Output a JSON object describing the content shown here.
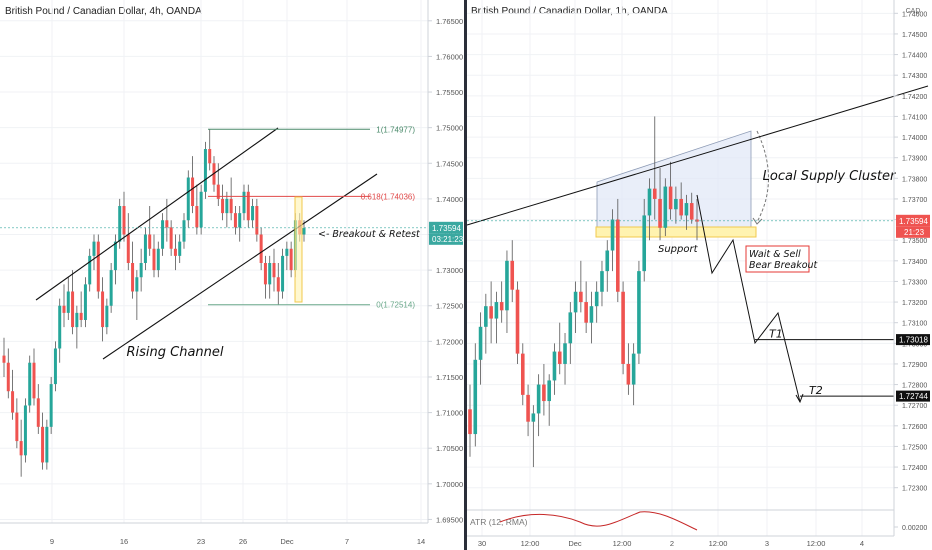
{
  "colors": {
    "up": "#26a69a",
    "down": "#ef5350",
    "wick": "#555555",
    "fib_top": "#4a8a6a",
    "fib_mid": "#e04848",
    "fib_bottom": "#6aa88a",
    "current_price": "#3aa8a0",
    "target_box": "#111111",
    "support_fill": "#fff3b0",
    "support_stroke": "#f2c94c",
    "supply_fill": "#dfe7f7",
    "atr": "#c62828",
    "divider": "#2a2e39"
  },
  "left": {
    "title": "British Pound / Canadian Dollar, 4h, OANDA",
    "y_ticks": [
      "1.76500",
      "1.76000",
      "1.75500",
      "1.75000",
      "1.74500",
      "1.74000",
      "1.73500",
      "1.73000",
      "1.72500",
      "1.72000",
      "1.71500",
      "1.71000",
      "1.70500",
      "1.70000",
      "1.69500"
    ],
    "x_ticks": [
      "9",
      "16",
      "23",
      "26",
      "Dec",
      "7",
      "14"
    ],
    "price_label": "1.73594",
    "countdown": "03:21:23",
    "fib": [
      {
        "label": "1(1.74977)",
        "value": 1.74977
      },
      {
        "label": "0.618(1.74036)",
        "value": 1.74036
      },
      {
        "label": "0(1.72514)",
        "value": 1.72514
      }
    ],
    "annotations": {
      "channel": "Rising Channel",
      "retest": "<- Breakout & Retest"
    }
  },
  "right": {
    "title": "British Pound / Canadian Dollar, 1h, OANDA",
    "currency": "CAD",
    "y_ticks": [
      "1.74600",
      "1.74500",
      "1.74400",
      "1.74300",
      "1.74200",
      "1.74100",
      "1.74000",
      "1.73900",
      "1.73800",
      "1.73700",
      "1.73600",
      "1.73500",
      "1.73400",
      "1.73300",
      "1.73200",
      "1.73100",
      "1.73000",
      "1.72900",
      "1.72800",
      "1.72700",
      "1.72600",
      "1.72500",
      "1.72400",
      "1.72300",
      "0.00200"
    ],
    "x_ticks": [
      "30",
      "12:00",
      "Dec",
      "12:00",
      "2",
      "12:00",
      "3",
      "12:00",
      "4"
    ],
    "price_label": "1.73594",
    "countdown": "21:23",
    "targets": [
      {
        "label": "T1",
        "price": "1.73018",
        "value": 1.73018
      },
      {
        "label": "T2",
        "price": "1.72744",
        "value": 1.72744
      }
    ],
    "annotations": {
      "supply": "Local Supply Cluster",
      "support": "Support",
      "wait_line1": "Wait & Sell",
      "wait_line2": "Bear Breakout"
    },
    "indicator": "ATR (12, RMA)"
  },
  "chart_data": [
    {
      "type": "candlestick",
      "title": "British Pound / Canadian Dollar, 4h, OANDA",
      "ylim": [
        1.6945,
        1.7675
      ],
      "x_ticks": [
        "9",
        "16",
        "23",
        "26",
        "Dec",
        "7",
        "14"
      ],
      "series": [
        {
          "ohlc": [
            [
              1.718,
              1.7205,
              1.715,
              1.717
            ],
            [
              1.717,
              1.719,
              1.712,
              1.713
            ],
            [
              1.713,
              1.716,
              1.709,
              1.71
            ],
            [
              1.71,
              1.712,
              1.705,
              1.706
            ],
            [
              1.706,
              1.709,
              1.701,
              1.704
            ],
            [
              1.704,
              1.712,
              1.703,
              1.711
            ],
            [
              1.711,
              1.718,
              1.71,
              1.717
            ],
            [
              1.717,
              1.719,
              1.711,
              1.712
            ],
            [
              1.712,
              1.714,
              1.707,
              1.708
            ],
            [
              1.708,
              1.71,
              1.702,
              1.703
            ],
            [
              1.703,
              1.709,
              1.702,
              1.708
            ],
            [
              1.708,
              1.715,
              1.707,
              1.714
            ],
            [
              1.714,
              1.72,
              1.713,
              1.719
            ],
            [
              1.719,
              1.726,
              1.717,
              1.725
            ],
            [
              1.725,
              1.728,
              1.722,
              1.724
            ],
            [
              1.724,
              1.729,
              1.723,
              1.727
            ],
            [
              1.727,
              1.73,
              1.721,
              1.722
            ],
            [
              1.722,
              1.725,
              1.719,
              1.724
            ],
            [
              1.724,
              1.727,
              1.722,
              1.723
            ],
            [
              1.723,
              1.729,
              1.722,
              1.728
            ],
            [
              1.728,
              1.733,
              1.727,
              1.732
            ],
            [
              1.732,
              1.735,
              1.73,
              1.734
            ],
            [
              1.734,
              1.735,
              1.726,
              1.727
            ],
            [
              1.727,
              1.729,
              1.72,
              1.722
            ],
            [
              1.722,
              1.726,
              1.721,
              1.725
            ],
            [
              1.725,
              1.731,
              1.724,
              1.73
            ],
            [
              1.73,
              1.735,
              1.728,
              1.734
            ],
            [
              1.734,
              1.74,
              1.733,
              1.739
            ],
            [
              1.739,
              1.741,
              1.734,
              1.735
            ],
            [
              1.735,
              1.738,
              1.73,
              1.731
            ],
            [
              1.731,
              1.734,
              1.726,
              1.727
            ],
            [
              1.727,
              1.73,
              1.723,
              1.729
            ],
            [
              1.729,
              1.733,
              1.727,
              1.731
            ],
            [
              1.731,
              1.736,
              1.73,
              1.735
            ],
            [
              1.735,
              1.739,
              1.732,
              1.733
            ],
            [
              1.733,
              1.735,
              1.729,
              1.73
            ],
            [
              1.73,
              1.734,
              1.729,
              1.733
            ],
            [
              1.733,
              1.738,
              1.732,
              1.737
            ],
            [
              1.737,
              1.74,
              1.734,
              1.736
            ],
            [
              1.736,
              1.737,
              1.732,
              1.733
            ],
            [
              1.733,
              1.735,
              1.73,
              1.732
            ],
            [
              1.732,
              1.735,
              1.731,
              1.734
            ],
            [
              1.734,
              1.738,
              1.733,
              1.737
            ],
            [
              1.737,
              1.744,
              1.736,
              1.743
            ],
            [
              1.743,
              1.746,
              1.738,
              1.739
            ],
            [
              1.739,
              1.742,
              1.735,
              1.736
            ],
            [
              1.736,
              1.742,
              1.735,
              1.741
            ],
            [
              1.741,
              1.748,
              1.74,
              1.747
            ],
            [
              1.747,
              1.7498,
              1.744,
              1.745
            ],
            [
              1.745,
              1.746,
              1.741,
              1.742
            ],
            [
              1.742,
              1.745,
              1.739,
              1.74
            ],
            [
              1.74,
              1.742,
              1.737,
              1.738
            ],
            [
              1.738,
              1.741,
              1.736,
              1.74
            ],
            [
              1.74,
              1.743,
              1.737,
              1.738
            ],
            [
              1.738,
              1.739,
              1.735,
              1.736
            ],
            [
              1.736,
              1.739,
              1.734,
              1.738
            ],
            [
              1.738,
              1.742,
              1.737,
              1.741
            ],
            [
              1.741,
              1.742,
              1.736,
              1.737
            ],
            [
              1.737,
              1.74,
              1.736,
              1.739
            ],
            [
              1.739,
              1.74,
              1.734,
              1.735
            ],
            [
              1.735,
              1.736,
              1.73,
              1.731
            ],
            [
              1.731,
              1.732,
              1.726,
              1.728
            ],
            [
              1.728,
              1.732,
              1.726,
              1.731
            ],
            [
              1.731,
              1.733,
              1.727,
              1.729
            ],
            [
              1.729,
              1.731,
              1.7251,
              1.727
            ],
            [
              1.727,
              1.733,
              1.726,
              1.732
            ],
            [
              1.732,
              1.734,
              1.73,
              1.733
            ],
            [
              1.733,
              1.734,
              1.729,
              1.73
            ],
            [
              1.73,
              1.738,
              1.729,
              1.737
            ],
            [
              1.737,
              1.738,
              1.734,
              1.735
            ],
            [
              1.735,
              1.737,
              1.734,
              1.7359
            ]
          ]
        }
      ]
    },
    {
      "type": "candlestick",
      "title": "British Pound / Canadian Dollar, 1h, OANDA",
      "ylim": [
        1.7225,
        1.7465
      ],
      "x_ticks": [
        "30",
        "12:00",
        "Dec",
        "12:00",
        "2",
        "12:00",
        "3",
        "12:00",
        "4"
      ],
      "series": [
        {
          "ohlc": [
            [
              1.7268,
              1.728,
              1.7245,
              1.7256
            ],
            [
              1.7256,
              1.73,
              1.725,
              1.7292
            ],
            [
              1.7292,
              1.7315,
              1.728,
              1.7308
            ],
            [
              1.7308,
              1.7324,
              1.7295,
              1.7318
            ],
            [
              1.7318,
              1.733,
              1.73,
              1.7312
            ],
            [
              1.7312,
              1.7325,
              1.73,
              1.732
            ],
            [
              1.732,
              1.733,
              1.731,
              1.7316
            ],
            [
              1.7316,
              1.7345,
              1.7305,
              1.734
            ],
            [
              1.734,
              1.735,
              1.732,
              1.7326
            ],
            [
              1.7326,
              1.733,
              1.729,
              1.7295
            ],
            [
              1.7295,
              1.73,
              1.727,
              1.7275
            ],
            [
              1.7275,
              1.728,
              1.7255,
              1.7262
            ],
            [
              1.7262,
              1.727,
              1.724,
              1.7266
            ],
            [
              1.7266,
              1.7285,
              1.7255,
              1.728
            ],
            [
              1.728,
              1.729,
              1.7265,
              1.7272
            ],
            [
              1.7272,
              1.7285,
              1.726,
              1.7282
            ],
            [
              1.7282,
              1.73,
              1.7275,
              1.7296
            ],
            [
              1.7296,
              1.731,
              1.7285,
              1.729
            ],
            [
              1.729,
              1.7305,
              1.728,
              1.73
            ],
            [
              1.73,
              1.732,
              1.729,
              1.7315
            ],
            [
              1.7315,
              1.733,
              1.7305,
              1.7325
            ],
            [
              1.7325,
              1.734,
              1.7315,
              1.732
            ],
            [
              1.732,
              1.733,
              1.7305,
              1.731
            ],
            [
              1.731,
              1.7325,
              1.73,
              1.7318
            ],
            [
              1.7318,
              1.733,
              1.731,
              1.7325
            ],
            [
              1.7325,
              1.734,
              1.7318,
              1.7335
            ],
            [
              1.7335,
              1.735,
              1.7325,
              1.7345
            ],
            [
              1.7345,
              1.7365,
              1.7335,
              1.736
            ],
            [
              1.736,
              1.737,
              1.732,
              1.7325
            ],
            [
              1.7325,
              1.733,
              1.7285,
              1.729
            ],
            [
              1.729,
              1.73,
              1.7275,
              1.728
            ],
            [
              1.728,
              1.73,
              1.727,
              1.7295
            ],
            [
              1.7295,
              1.734,
              1.729,
              1.7335
            ],
            [
              1.7335,
              1.737,
              1.733,
              1.7362
            ],
            [
              1.7362,
              1.738,
              1.735,
              1.7375
            ],
            [
              1.7375,
              1.741,
              1.736,
              1.737
            ],
            [
              1.737,
              1.7385,
              1.735,
              1.7356
            ],
            [
              1.7356,
              1.738,
              1.7352,
              1.7376
            ],
            [
              1.7376,
              1.7388,
              1.736,
              1.7365
            ],
            [
              1.7365,
              1.7376,
              1.7358,
              1.737
            ],
            [
              1.737,
              1.7378,
              1.736,
              1.7362
            ],
            [
              1.7362,
              1.7372,
              1.7355,
              1.7368
            ],
            [
              1.7368,
              1.7373,
              1.7358,
              1.736
            ],
            [
              1.736,
              1.737,
              1.735,
              1.7359
            ]
          ]
        }
      ],
      "levels": [
        {
          "label": "T1",
          "value": 1.73018
        },
        {
          "label": "T2",
          "value": 1.72744
        },
        {
          "label": "Support",
          "value": 1.7355
        }
      ],
      "indicator": {
        "name": "ATR (12, RMA)",
        "last": 0.002
      }
    }
  ]
}
